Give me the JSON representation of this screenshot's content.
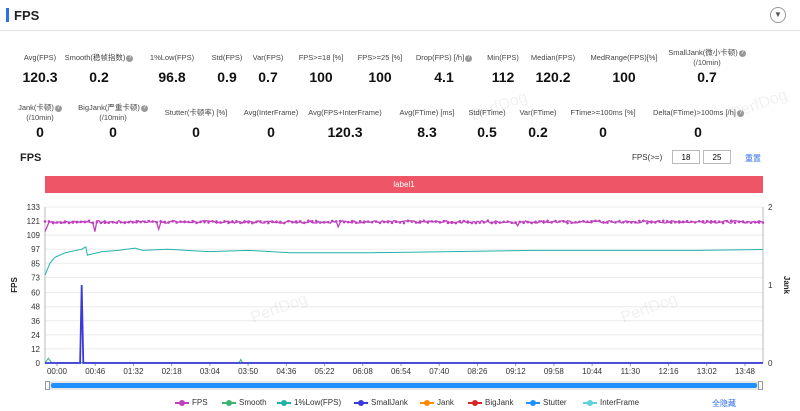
{
  "header": {
    "title": "FPS"
  },
  "metrics_row1": [
    {
      "label": "Avg(FPS)",
      "value": "120.3",
      "help": false
    },
    {
      "label": "Smooth(稳帧指数)",
      "value": "0.2",
      "help": true
    },
    {
      "label": "1%Low(FPS)",
      "value": "96.8",
      "help": false
    },
    {
      "label": "Std(FPS)",
      "value": "0.9",
      "help": false
    },
    {
      "label": "Var(FPS)",
      "value": "0.7",
      "help": false
    },
    {
      "label": "FPS>=18 [%]",
      "value": "100",
      "help": false
    },
    {
      "label": "FPS>=25 [%]",
      "value": "100",
      "help": false
    },
    {
      "label": "Drop(FPS) [/h]",
      "value": "4.1",
      "help": true
    },
    {
      "label": "Min(FPS)",
      "value": "112",
      "help": false
    },
    {
      "label": "Median(FPS)",
      "value": "120.2",
      "help": false
    },
    {
      "label": "MedRange(FPS)[%]",
      "value": "100",
      "help": false
    },
    {
      "label": "SmallJank(微小卡顿)",
      "label2": "(/10min)",
      "value": "0.7",
      "help": true
    }
  ],
  "metrics_row2": [
    {
      "label": "Jank(卡顿)",
      "label2": "(/10min)",
      "value": "0",
      "help": true
    },
    {
      "label": "BigJank(严重卡顿)",
      "label2": "(/10min)",
      "value": "0",
      "help": true
    },
    {
      "label": "Stutter(卡顿率) [%]",
      "value": "0",
      "help": false
    },
    {
      "label": "Avg(InterFrame)",
      "value": "0",
      "help": false
    },
    {
      "label": "Avg(FPS+InterFrame)",
      "value": "120.3",
      "help": false
    },
    {
      "label": "Avg(FTime) [ms]",
      "value": "8.3",
      "help": false
    },
    {
      "label": "Std(FTime)",
      "value": "0.5",
      "help": false
    },
    {
      "label": "Var(FTime)",
      "value": "0.2",
      "help": false
    },
    {
      "label": "FTime>=100ms [%]",
      "value": "0",
      "help": false
    },
    {
      "label": "Delta(FTime)>100ms [/h]",
      "value": "0",
      "help": true
    }
  ],
  "chart_header": {
    "title": "FPS",
    "fps_label": "FPS(>=)",
    "threshold1": "18",
    "threshold2": "25",
    "reset_label": "重置"
  },
  "label_bar": "label1",
  "watermark": "PerfDog",
  "legend_toggle": "全隐藏",
  "colors": {
    "accent": "#2f6fe4",
    "label_bar": "#ee5566",
    "fps": "#c040c0",
    "smooth": "#3cb371",
    "low": "#20b2aa",
    "smalljank": "#3b3bd9",
    "jank": "#ff8c00",
    "bigjank": "#d62728",
    "stutter": "#1e90ff",
    "interframe": "#5dd3dc"
  },
  "chart_data": {
    "type": "line",
    "xlabel": "",
    "ylabel": "FPS",
    "y2label": "Jank",
    "x_ticks": [
      "00:00",
      "00:46",
      "01:32",
      "02:18",
      "03:04",
      "03:50",
      "04:36",
      "05:22",
      "06:08",
      "06:54",
      "07:40",
      "08:26",
      "09:12",
      "09:58",
      "10:44",
      "11:30",
      "12:16",
      "13:02",
      "13:48"
    ],
    "x_range_seconds": [
      0,
      880
    ],
    "y_ticks": [
      0,
      12,
      24,
      36,
      48,
      60,
      73,
      85,
      97,
      109,
      121,
      133
    ],
    "ylim": [
      0,
      133
    ],
    "y2_ticks": [
      0,
      1,
      2
    ],
    "y2lim": [
      0,
      2
    ],
    "grid": true,
    "legend_position": "bottom",
    "series": [
      {
        "name": "FPS",
        "color": "#c040c0",
        "marker": true,
        "axis": "left",
        "typical": 120.3,
        "points": [
          [
            0,
            112
          ],
          [
            2,
            116
          ],
          [
            5,
            120
          ],
          [
            60,
            112
          ],
          [
            140,
            114
          ],
          [
            360,
            116
          ],
          [
            580,
            117
          ]
        ]
      },
      {
        "name": "Smooth",
        "color": "#3cb371",
        "axis": "left",
        "points": [
          [
            0,
            0
          ],
          [
            4,
            4
          ],
          [
            8,
            0.3
          ],
          [
            238,
            0.3
          ],
          [
            240,
            3
          ],
          [
            242,
            0.3
          ],
          [
            880,
            0.2
          ]
        ]
      },
      {
        "name": "1%Low(FPS)",
        "color": "#20b2aa",
        "axis": "left",
        "points": [
          [
            0,
            75
          ],
          [
            6,
            85
          ],
          [
            12,
            90
          ],
          [
            25,
            94
          ],
          [
            45,
            97
          ],
          [
            50,
            99
          ],
          [
            52,
            92
          ],
          [
            70,
            95
          ],
          [
            90,
            96
          ],
          [
            110,
            98
          ],
          [
            120,
            96
          ],
          [
            150,
            97
          ],
          [
            200,
            95
          ],
          [
            250,
            96
          ],
          [
            300,
            94
          ],
          [
            400,
            94
          ],
          [
            500,
            95
          ],
          [
            600,
            96
          ],
          [
            700,
            96
          ],
          [
            800,
            96
          ],
          [
            880,
            96.8
          ]
        ]
      },
      {
        "name": "SmallJank",
        "color": "#3b3bd9",
        "axis": "right",
        "points": [
          [
            0,
            0
          ],
          [
            43,
            0
          ],
          [
            45,
            1.0
          ],
          [
            47,
            0
          ],
          [
            880,
            0
          ]
        ]
      },
      {
        "name": "Jank",
        "color": "#ff8c00",
        "axis": "right",
        "points": [
          [
            0,
            0
          ],
          [
            880,
            0
          ]
        ]
      },
      {
        "name": "BigJank",
        "color": "#d62728",
        "axis": "right",
        "points": [
          [
            0,
            0
          ],
          [
            880,
            0
          ]
        ]
      },
      {
        "name": "Stutter",
        "color": "#1e90ff",
        "axis": "left",
        "points": [
          [
            0,
            0
          ],
          [
            880,
            0
          ]
        ]
      },
      {
        "name": "InterFrame",
        "color": "#5dd3dc",
        "axis": "left",
        "points": [
          [
            0,
            0
          ],
          [
            880,
            0
          ]
        ]
      }
    ]
  }
}
